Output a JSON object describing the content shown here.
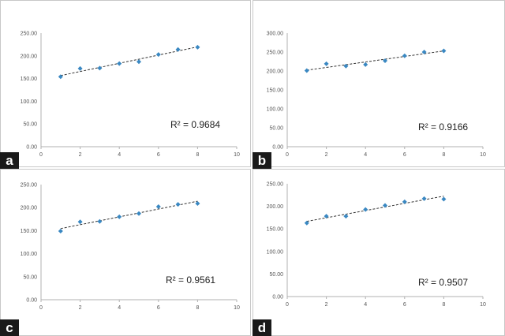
{
  "chart_data": [
    {
      "type": "scatter",
      "panel_label": "a",
      "x": [
        1,
        2,
        3,
        4,
        5,
        6,
        7,
        8
      ],
      "y": [
        154,
        172,
        173,
        183,
        187,
        203,
        214,
        219
      ],
      "trendline": "linear",
      "r2_label": "R² = 0.9684",
      "xlim": [
        0,
        10
      ],
      "ylim": [
        0,
        250
      ],
      "x_ticks": [
        "0",
        "2",
        "4",
        "6",
        "8",
        "10"
      ],
      "y_ticks": [
        "0.00",
        "50.00",
        "100.00",
        "150.00",
        "200.00",
        "250.00"
      ],
      "marker_color": "#3a88c2",
      "trend_color": "#333333"
    },
    {
      "type": "scatter",
      "panel_label": "b",
      "x": [
        1,
        2,
        3,
        4,
        5,
        6,
        7,
        8
      ],
      "y": [
        201,
        219,
        213,
        217,
        227,
        240,
        250,
        253
      ],
      "trendline": "linear",
      "r2_label": "R² = 0.9166",
      "xlim": [
        0,
        10
      ],
      "ylim": [
        0,
        300
      ],
      "x_ticks": [
        "0",
        "2",
        "4",
        "6",
        "8",
        "10"
      ],
      "y_ticks": [
        "0.00",
        "50.00",
        "100.00",
        "150.00",
        "200.00",
        "250.00",
        "300.00"
      ],
      "marker_color": "#3a88c2",
      "trend_color": "#333333"
    },
    {
      "type": "scatter",
      "panel_label": "c",
      "x": [
        1,
        2,
        3,
        4,
        5,
        6,
        7,
        8
      ],
      "y": [
        149,
        169,
        170,
        180,
        187,
        202,
        207,
        209
      ],
      "trendline": "linear",
      "r2_label": "R² = 0.9561",
      "xlim": [
        0,
        10
      ],
      "ylim": [
        0,
        250
      ],
      "x_ticks": [
        "0",
        "2",
        "4",
        "6",
        "8",
        "10"
      ],
      "y_ticks": [
        "0.00",
        "50.00",
        "100.00",
        "150.00",
        "200.00",
        "250.00"
      ],
      "marker_color": "#3a88c2",
      "trend_color": "#333333"
    },
    {
      "type": "scatter",
      "panel_label": "d",
      "x": [
        1,
        2,
        3,
        4,
        5,
        6,
        7,
        8
      ],
      "y": [
        163,
        178,
        178,
        193,
        202,
        210,
        217,
        216
      ],
      "trendline": "linear",
      "r2_label": "R² = 0.9507",
      "xlim": [
        0,
        10
      ],
      "ylim": [
        0,
        250
      ],
      "x_ticks": [
        "0",
        "2",
        "4",
        "6",
        "8",
        "10"
      ],
      "y_ticks": [
        "0.00",
        "50.00",
        "100.00",
        "150.00",
        "200.00",
        "250.00"
      ],
      "marker_color": "#3a88c2",
      "trend_color": "#333333"
    }
  ]
}
